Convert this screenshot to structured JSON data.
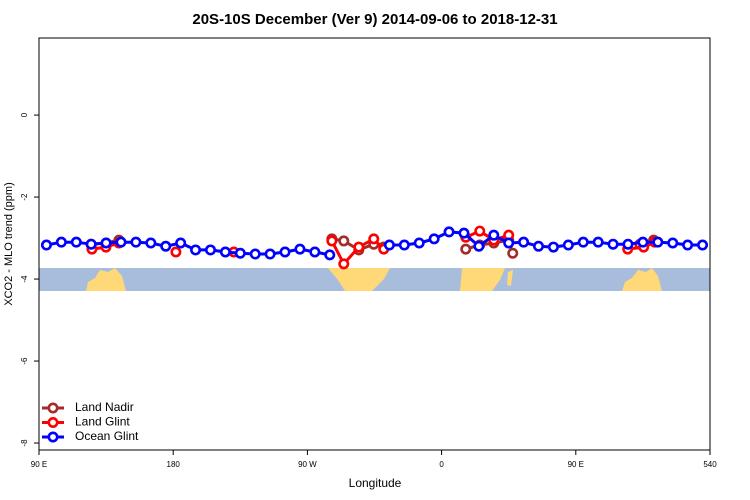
{
  "chart_data": {
    "type": "line",
    "title": "20S-10S December (Ver 9)   2014-09-06 to 2018-12-31",
    "x_label": "Longitude",
    "y_label": "XCO2 - MLO trend (ppm)",
    "xlim": [
      90,
      540
    ],
    "xticks": [
      {
        "value": 90,
        "label": "90 E"
      },
      180,
      {
        "value": 270,
        "label": "90 W"
      },
      {
        "value": 360,
        "label": "0"
      },
      {
        "value": 450,
        "label": "90 E"
      },
      540
    ],
    "ylim": [
      -8.17,
      1.88
    ],
    "yticks": [
      0,
      -2,
      -4,
      -6,
      -8
    ],
    "legend": "bottom-left",
    "series": [
      {
        "name": "Land Nadir",
        "color": "#a52a2a",
        "x": [
          124.9,
          135,
          143.6,
          null,
          286.4,
          294.4,
          304.5,
          314.5,
          321.2,
          null,
          376.2,
          385.6,
          395,
          405,
          407.7,
          null,
          493,
          502.2
        ],
        "values": [
          -3.15,
          -3.12,
          -3.05,
          null,
          -3.02,
          -3.07,
          -3.29,
          -3.15,
          -3.22,
          null,
          -3.27,
          -3.17,
          -3.12,
          -3.05,
          -3.37,
          null,
          -3.15,
          -3.05
        ]
      },
      {
        "name": "Land Glint",
        "color": "#ff0000",
        "x": [
          125.5,
          134.9,
          143.6,
          null,
          181.8,
          null,
          220.7,
          null,
          286.4,
          294.4,
          304.5,
          314.5,
          321.2,
          null,
          376.2,
          385.6,
          395,
          405,
          null,
          484.8,
          495.5,
          502.9
        ],
        "values": [
          -3.27,
          -3.22,
          -3.12,
          null,
          -3.34,
          null,
          -3.34,
          null,
          -3.07,
          -3.63,
          -3.22,
          -3.02,
          -3.27,
          null,
          -2.98,
          -2.83,
          -3.05,
          -2.93,
          null,
          -3.27,
          -3.22,
          -3.1
        ]
      },
      {
        "name": "Ocean Glint",
        "color": "#0000ff",
        "x": [
          95,
          105,
          115,
          125,
          135,
          145,
          155,
          165,
          175,
          185,
          195,
          205,
          215,
          225,
          235,
          245,
          255,
          265,
          275,
          285,
          null,
          325,
          335,
          345,
          355,
          365,
          375,
          385,
          395,
          405,
          415,
          425,
          435,
          445,
          455,
          465,
          475,
          485,
          495,
          505,
          515,
          525,
          535
        ],
        "values": [
          -3.17,
          -3.1,
          -3.1,
          -3.15,
          -3.12,
          -3.1,
          -3.1,
          -3.12,
          -3.2,
          -3.12,
          -3.29,
          -3.29,
          -3.34,
          -3.37,
          -3.39,
          -3.39,
          -3.34,
          -3.27,
          -3.34,
          -3.41,
          null,
          -3.17,
          -3.17,
          -3.12,
          -3.02,
          -2.85,
          -2.88,
          -3.2,
          -2.93,
          -3.12,
          -3.1,
          -3.2,
          -3.22,
          -3.17,
          -3.1,
          -3.1,
          -3.15,
          -3.15,
          -3.1,
          -3.1,
          -3.12,
          -3.17,
          -3.17
        ]
      }
    ]
  }
}
